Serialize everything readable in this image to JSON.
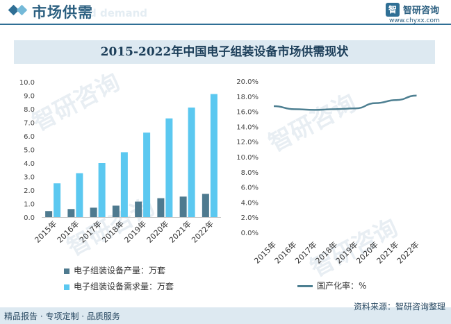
{
  "header": {
    "title": "市场供需",
    "ghost_text": "d demand",
    "logo_glyph": "智",
    "logo_name": "智研咨询",
    "logo_url": "www.chyxx.com"
  },
  "title": "2015-2022年中国电子组装设备市场供需现状",
  "watermark": "智研咨询",
  "colors": {
    "production": "#4e7a8f",
    "demand": "#5bc8f0",
    "rate_line": "#4d7f91",
    "brand": "#2f6f95"
  },
  "chart_data": [
    {
      "type": "bar",
      "categories": [
        "2015年",
        "2016年",
        "2017年",
        "2018年",
        "2019年",
        "2020年",
        "2021年",
        "2022年"
      ],
      "series": [
        {
          "name": "电子组装设备产量：万套",
          "values": [
            0.45,
            0.6,
            0.7,
            0.85,
            1.15,
            1.4,
            1.52,
            1.72
          ]
        },
        {
          "name": "电子组装设备需求量：万套",
          "values": [
            2.5,
            3.25,
            4.0,
            4.8,
            6.25,
            7.3,
            8.1,
            9.1
          ]
        }
      ],
      "ylim": [
        0,
        10
      ],
      "yticks": [
        "0.0",
        "1.0",
        "2.0",
        "3.0",
        "4.0",
        "5.0",
        "6.0",
        "7.0",
        "8.0",
        "9.0",
        "10.0"
      ],
      "legend_position": "bottom"
    },
    {
      "type": "line",
      "categories": [
        "2015年",
        "2016年",
        "2017年",
        "2018年",
        "2019年",
        "2020年",
        "2021年",
        "2022年"
      ],
      "series": [
        {
          "name": "国产化率：%",
          "values": [
            16.7,
            16.3,
            16.2,
            16.3,
            16.4,
            17.1,
            17.5,
            18.1
          ]
        }
      ],
      "ylim": [
        0,
        20
      ],
      "yticks": [
        "0.0%",
        "2.0%",
        "4.0%",
        "6.0%",
        "8.0%",
        "10.0%",
        "12.0%",
        "14.0%",
        "16.0%",
        "18.0%",
        "20.0%"
      ],
      "legend_position": "bottom"
    }
  ],
  "footer": {
    "left": "精品报告 · 专项定制 · 品质服务",
    "right": "资料来源：智研咨询整理"
  }
}
